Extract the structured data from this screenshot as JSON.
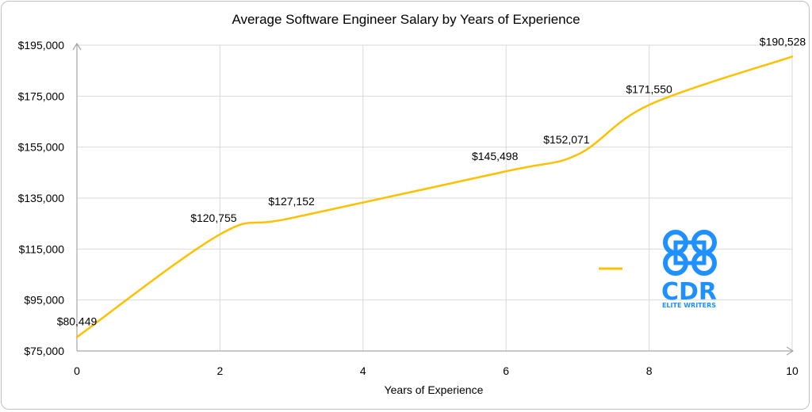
{
  "chart_data": {
    "type": "line",
    "title": "Average Software Engineer Salary by Years of Experience",
    "xlabel": "Years of Experience",
    "ylabel": "",
    "xlim": [
      0,
      10
    ],
    "ylim": [
      75000,
      195000
    ],
    "x_ticks": [
      0,
      2,
      4,
      6,
      8,
      10
    ],
    "y_ticks": [
      75000,
      95000,
      115000,
      135000,
      155000,
      175000,
      195000
    ],
    "y_tick_labels": [
      "$75,000",
      "$95,000",
      "$115,000",
      "$135,000",
      "$155,000",
      "$175,000",
      "$195,000"
    ],
    "grid": true,
    "smoothed": true,
    "series": [
      {
        "color": "#FFC000",
        "x": [
          0,
          2,
          3,
          6,
          7,
          8,
          10
        ],
        "y": [
          80449,
          120755,
          127152,
          145498,
          152071,
          171550,
          190528
        ],
        "data_labels": [
          "$80,449",
          "$120,755",
          "$127,152",
          "$145,498",
          "$152,071",
          "$171,550",
          "$190,528"
        ]
      }
    ],
    "legend": {
      "position": "right",
      "entries": [
        {
          "swatch_color": "#FFC000"
        }
      ]
    }
  },
  "logo": {
    "text": "CDR",
    "tagline": "ELITE WRITERS",
    "color": "#1E90FF"
  },
  "colors": {
    "line": "#FFC000",
    "grid": "#d9d9d9",
    "axis": "#a6a6a6",
    "border": "#bfbfbf"
  }
}
